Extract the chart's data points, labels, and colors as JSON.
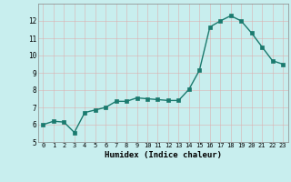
{
  "x": [
    0,
    1,
    2,
    3,
    4,
    5,
    6,
    7,
    8,
    9,
    10,
    11,
    12,
    13,
    14,
    15,
    16,
    17,
    18,
    19,
    20,
    21,
    22,
    23
  ],
  "y": [
    6.0,
    6.2,
    6.15,
    5.55,
    6.7,
    6.85,
    7.0,
    7.35,
    7.35,
    7.55,
    7.5,
    7.45,
    7.4,
    7.4,
    8.05,
    9.15,
    11.65,
    12.0,
    12.3,
    12.0,
    11.3,
    10.5,
    9.7,
    9.5
  ],
  "xlabel": "Humidex (Indice chaleur)",
  "xlim": [
    -0.5,
    23.5
  ],
  "ylim": [
    5,
    13
  ],
  "yticks": [
    5,
    6,
    7,
    8,
    9,
    10,
    11,
    12
  ],
  "xticks": [
    0,
    1,
    2,
    3,
    4,
    5,
    6,
    7,
    8,
    9,
    10,
    11,
    12,
    13,
    14,
    15,
    16,
    17,
    18,
    19,
    20,
    21,
    22,
    23
  ],
  "line_color": "#1a7a6e",
  "bg_color": "#c8eeee",
  "grid_color": "#e8e8e8",
  "marker": "s",
  "marker_size": 2.2,
  "line_width": 1.0
}
